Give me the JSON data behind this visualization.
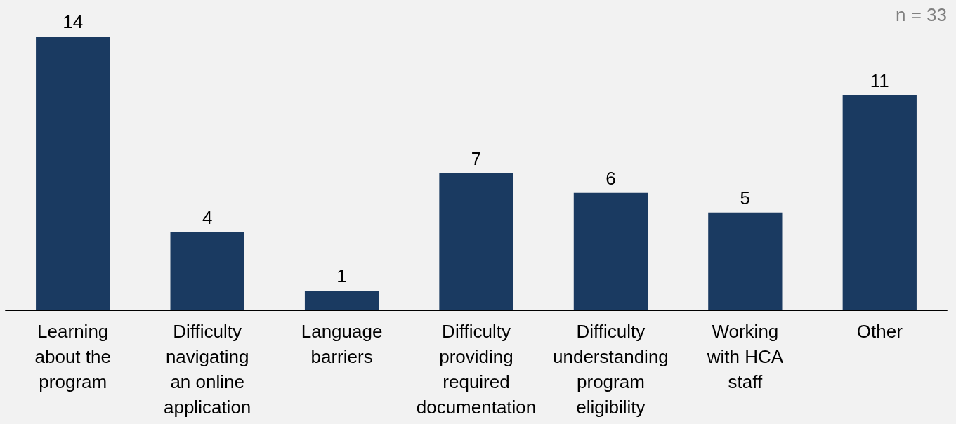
{
  "chart_data": {
    "type": "bar",
    "categories": [
      "Learning about the program",
      "Difficulty navigating an online application",
      "Language barriers",
      "Difficulty providing required documentation",
      "Difficulty understanding program eligibility",
      "Working with HCA staff",
      "Other"
    ],
    "values": [
      14,
      4,
      1,
      7,
      6,
      5,
      11
    ],
    "color": "#1a3a61",
    "data_labels": true,
    "annotations": [
      "n = 33"
    ]
  }
}
